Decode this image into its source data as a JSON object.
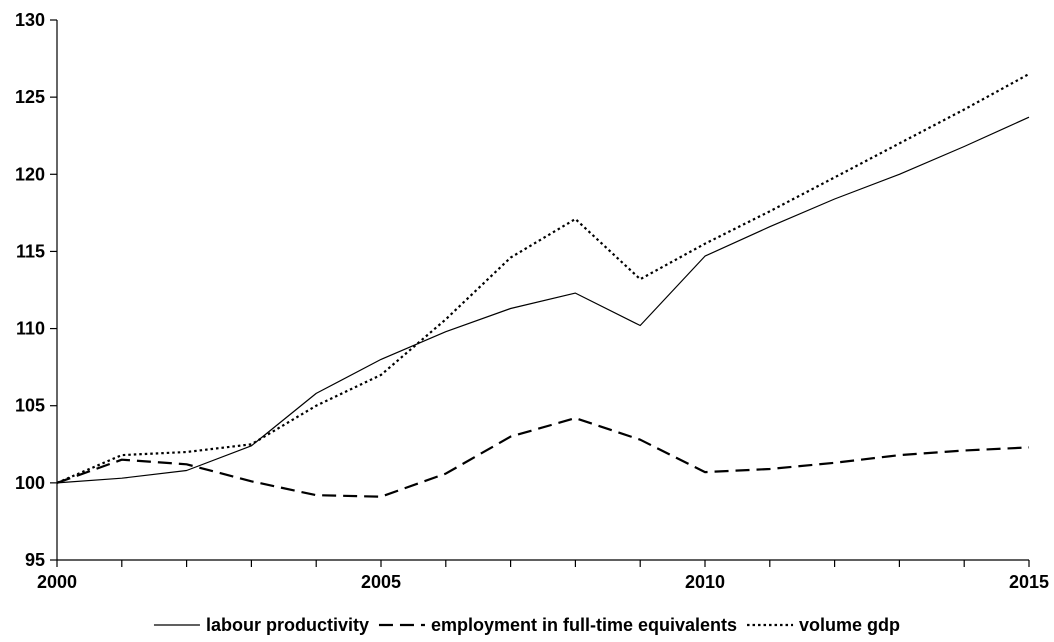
{
  "chart_data": {
    "type": "line",
    "title": "",
    "xlabel": "",
    "ylabel": "",
    "xlim": [
      2000,
      2015
    ],
    "ylim": [
      95,
      130
    ],
    "x_ticks": [
      2000,
      2005,
      2010,
      2015
    ],
    "y_ticks": [
      95,
      100,
      105,
      110,
      115,
      120,
      125,
      130
    ],
    "grid": false,
    "legend": "bottom",
    "x": [
      2000,
      2001,
      2002,
      2003,
      2004,
      2005,
      2006,
      2007,
      2008,
      2009,
      2010,
      2011,
      2012,
      2013,
      2014,
      2015
    ],
    "series": [
      {
        "name": "labour productivity",
        "style": "solid",
        "color": "#000000",
        "values": [
          100.0,
          100.3,
          100.8,
          102.4,
          105.8,
          108.0,
          109.8,
          111.3,
          112.3,
          110.2,
          114.7,
          116.6,
          118.4,
          120.0,
          121.8,
          123.7
        ]
      },
      {
        "name": "employment in full-time equivalents",
        "style": "dashed",
        "color": "#000000",
        "values": [
          100.0,
          101.5,
          101.2,
          100.1,
          99.2,
          99.1,
          100.6,
          103.0,
          104.2,
          102.8,
          100.7,
          100.9,
          101.3,
          101.8,
          102.1,
          102.3
        ]
      },
      {
        "name": "volume gdp",
        "style": "dotted",
        "color": "#000000",
        "values": [
          100.0,
          101.8,
          102.0,
          102.5,
          105.0,
          107.0,
          110.6,
          114.6,
          117.1,
          113.2,
          115.5,
          117.6,
          119.8,
          122.0,
          124.2,
          126.5
        ]
      }
    ]
  }
}
